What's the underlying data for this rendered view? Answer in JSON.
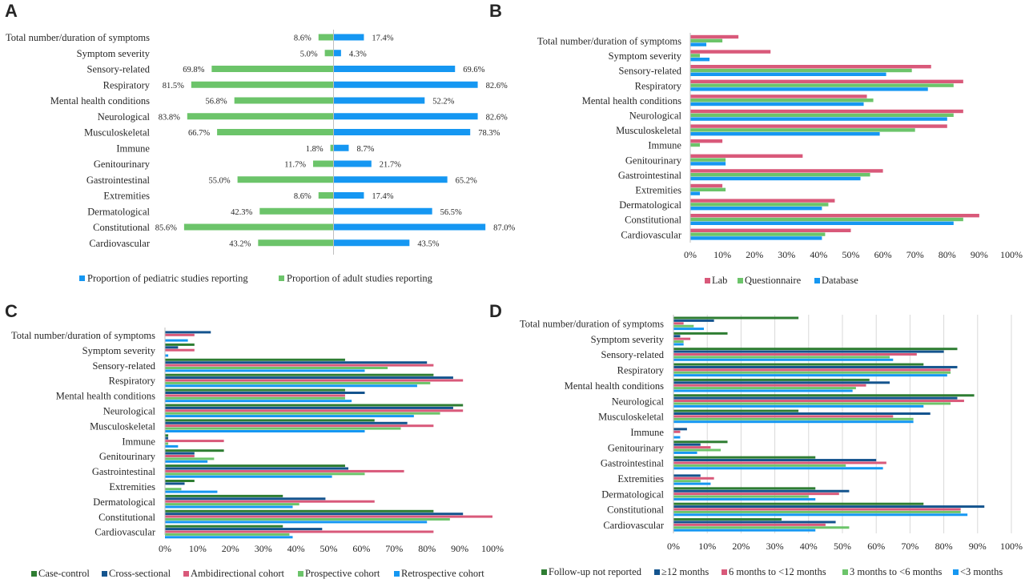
{
  "colors": {
    "pediatric": "#1597f2",
    "adult": "#6cc46a",
    "lab": "#d9597a",
    "questionnaire": "#6cc46a",
    "database": "#1597f2",
    "case_control": "#2e7d32",
    "cross_sectional": "#14548e",
    "ambidirectional": "#d9597a",
    "prospective": "#6cc46a",
    "retrospective": "#1597f2",
    "grid": "#d9d9d9",
    "axis": "#bfbfbf"
  },
  "panels": {
    "a": "A",
    "b": "B",
    "c": "C",
    "d": "D"
  },
  "chart_data": [
    {
      "panel": "A",
      "type": "bar",
      "orientation": "diverging-horizontal",
      "categories": [
        "Total number/duration of symptoms",
        "Symptom severity",
        "Sensory-related",
        "Respiratory",
        "Mental health conditions",
        "Neurological",
        "Musculoskeletal",
        "Immune",
        "Genitourinary",
        "Gastrointestinal",
        "Extremities",
        "Dermatological",
        "Constitutional",
        "Cardiovascular"
      ],
      "series": [
        {
          "name": "Proportion of pediatric studies reporting",
          "color_key": "pediatric",
          "side": "right",
          "values": [
            17.4,
            4.3,
            69.6,
            82.6,
            52.2,
            82.6,
            78.3,
            8.7,
            21.7,
            65.2,
            17.4,
            56.5,
            87.0,
            43.5
          ],
          "labels": [
            "17.4%",
            "4.3%",
            "69.6%",
            "82.6%",
            "52.2%",
            "82.6%",
            "78.3%",
            "8.7%",
            "21.7%",
            "65.2%",
            "17.4%",
            "56.5%",
            "87.0%",
            "43.5%"
          ]
        },
        {
          "name": "Proportion of adult studies reporting",
          "color_key": "adult",
          "side": "left",
          "values": [
            8.6,
            5.0,
            69.8,
            81.5,
            56.8,
            83.8,
            66.7,
            1.8,
            11.7,
            55.0,
            8.6,
            42.3,
            85.6,
            43.2
          ],
          "labels": [
            "8.6%",
            "5.0%",
            "69.8%",
            "81.5%",
            "56.8%",
            "83.8%",
            "66.7%",
            "1.8%",
            "11.7%",
            "55.0%",
            "8.6%",
            "42.3%",
            "85.6%",
            "43.2%"
          ]
        }
      ],
      "legend": "bottom",
      "grid": false
    },
    {
      "panel": "B",
      "type": "bar",
      "orientation": "horizontal",
      "categories": [
        "Total number/duration of symptoms",
        "Symptom severity",
        "Sensory-related",
        "Respiratory",
        "Mental health conditions",
        "Neurological",
        "Musculoskeletal",
        "Immune",
        "Genitourinary",
        "Gastrointestinal",
        "Extremities",
        "Dermatological",
        "Constitutional",
        "Cardiovascular"
      ],
      "xlim": [
        0,
        100
      ],
      "xticks": [
        "0%",
        "10%",
        "20%",
        "30%",
        "40%",
        "50%",
        "60%",
        "70%",
        "80%",
        "90%",
        "100%"
      ],
      "series": [
        {
          "name": "Lab",
          "color_key": "lab",
          "values": [
            15,
            25,
            75,
            85,
            55,
            85,
            80,
            10,
            35,
            60,
            10,
            45,
            90,
            50
          ]
        },
        {
          "name": "Questionnaire",
          "color_key": "questionnaire",
          "values": [
            10,
            3,
            69,
            82,
            57,
            82,
            70,
            3,
            11,
            56,
            11,
            43,
            85,
            42
          ]
        },
        {
          "name": "Database",
          "color_key": "database",
          "values": [
            5,
            6,
            61,
            74,
            54,
            80,
            59,
            0,
            11,
            53,
            3,
            41,
            82,
            41
          ]
        }
      ],
      "legend": "bottom",
      "grid": false
    },
    {
      "panel": "C",
      "type": "bar",
      "orientation": "horizontal",
      "categories": [
        "Total number/duration of symptoms",
        "Symptom severity",
        "Sensory-related",
        "Respiratory",
        "Mental health conditions",
        "Neurological",
        "Musculoskeletal",
        "Immune",
        "Genitourinary",
        "Gastrointestinal",
        "Extremities",
        "Dermatological",
        "Constitutional",
        "Cardiovascular"
      ],
      "xlim": [
        0,
        100
      ],
      "xticks": [
        "0%",
        "10%",
        "20%",
        "30%",
        "40%",
        "50%",
        "60%",
        "70%",
        "80%",
        "90%",
        "100%"
      ],
      "series": [
        {
          "name": "Case-control",
          "color_key": "case_control",
          "values": [
            0,
            9,
            55,
            82,
            55,
            91,
            64,
            1,
            18,
            55,
            9,
            36,
            82,
            36
          ]
        },
        {
          "name": "Cross-sectional",
          "color_key": "cross_sectional",
          "values": [
            14,
            4,
            80,
            88,
            61,
            88,
            74,
            1,
            9,
            56,
            6,
            49,
            91,
            48
          ]
        },
        {
          "name": "Ambidirectional cohort",
          "color_key": "ambidirectional",
          "values": [
            9,
            9,
            82,
            91,
            55,
            91,
            82,
            18,
            9,
            73,
            0,
            64,
            100,
            82
          ]
        },
        {
          "name": "Prospective cohort",
          "color_key": "prospective",
          "values": [
            0,
            0,
            68,
            81,
            55,
            84,
            72,
            1,
            15,
            61,
            5,
            41,
            87,
            38
          ]
        },
        {
          "name": "Retrospective cohort",
          "color_key": "retrospective",
          "values": [
            7,
            1,
            61,
            77,
            57,
            76,
            61,
            4,
            13,
            51,
            16,
            39,
            80,
            39
          ]
        }
      ],
      "legend": "bottom",
      "grid": false
    },
    {
      "panel": "D",
      "type": "bar",
      "orientation": "horizontal",
      "categories": [
        "Total number/duration of symptoms",
        "Symptom severity",
        "Sensory-related",
        "Respiratory",
        "Mental health conditions",
        "Neurological",
        "Musculoskeletal",
        "Immune",
        "Genitourinary",
        "Gastrointestinal",
        "Extremities",
        "Dermatological",
        "Constitutional",
        "Cardiovascular"
      ],
      "xlim": [
        0,
        100
      ],
      "xticks": [
        "0%",
        "10%",
        "20%",
        "30%",
        "40%",
        "50%",
        "60%",
        "70%",
        "80%",
        "90%",
        "100%"
      ],
      "series": [
        {
          "name": "Follow-up not reported",
          "color_key": "case_control",
          "values": [
            37,
            16,
            84,
            74,
            58,
            89,
            37,
            0,
            16,
            42,
            0,
            42,
            74,
            32
          ]
        },
        {
          "name": "≥12 months",
          "color_key": "cross_sectional",
          "values": [
            12,
            2,
            80,
            84,
            64,
            84,
            76,
            4,
            8,
            60,
            8,
            52,
            92,
            48
          ]
        },
        {
          "name": "6 months to <12 months",
          "color_key": "ambidirectional",
          "values": [
            3,
            5,
            72,
            82,
            57,
            86,
            65,
            2,
            11,
            63,
            12,
            49,
            85,
            45
          ]
        },
        {
          "name": "3 months to <6 months",
          "color_key": "prospective",
          "values": [
            6,
            3,
            64,
            82,
            54,
            82,
            71,
            0,
            14,
            51,
            8,
            40,
            85,
            52
          ]
        },
        {
          "name": "<3 months",
          "color_key": "retrospective",
          "values": [
            9,
            3,
            65,
            81,
            53,
            74,
            71,
            2,
            7,
            62,
            11,
            42,
            87,
            42
          ]
        }
      ],
      "legend": "bottom",
      "grid": true
    }
  ]
}
